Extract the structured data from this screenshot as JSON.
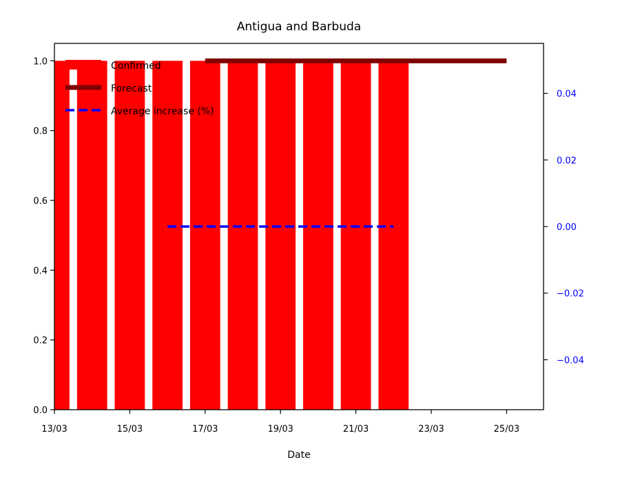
{
  "chart_data": {
    "type": "bar",
    "title": "Antigua and Barbuda",
    "xlabel": "Date",
    "ylabel": "",
    "x_ticks": [
      "13/03",
      "15/03",
      "17/03",
      "19/03",
      "21/03",
      "23/03",
      "25/03"
    ],
    "ylim": [
      0,
      1.05
    ],
    "y_ticks": [
      "0.0",
      "0.2",
      "0.4",
      "0.6",
      "0.8",
      "1.0"
    ],
    "y2lim": [
      -0.055,
      0.055
    ],
    "y2_ticks": [
      "0.04",
      "0.02",
      "0.00",
      "−0.02",
      "−0.04"
    ],
    "y2_color": "#0000ff",
    "legend_position": "upper-left",
    "series": [
      {
        "name": "Confirmed",
        "kind": "bar",
        "color": "#ff0000",
        "x": [
          "13/03",
          "14/03",
          "15/03",
          "16/03",
          "17/03",
          "18/03",
          "19/03",
          "20/03",
          "21/03",
          "22/03"
        ],
        "values": [
          1,
          1,
          1,
          1,
          1,
          1,
          1,
          1,
          1,
          1
        ]
      },
      {
        "name": "Forecast",
        "kind": "line",
        "color": "#800000",
        "x": [
          "17/03",
          "25/03"
        ],
        "values": [
          1,
          1
        ]
      },
      {
        "name": "Average increase (%)",
        "kind": "dashed-line",
        "axis": "right",
        "color": "#0000ff",
        "x": [
          "16/03",
          "22/03"
        ],
        "values": [
          0,
          0
        ]
      }
    ]
  }
}
